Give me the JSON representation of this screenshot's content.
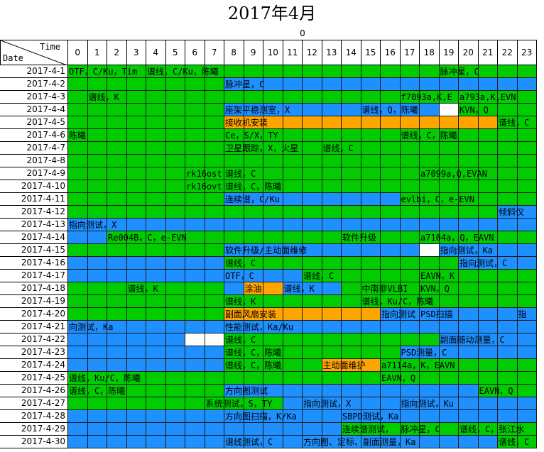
{
  "title": "2017年4月",
  "hour_group_label": "0",
  "corner": {
    "time": "Time",
    "date": "Date"
  },
  "hours": [
    "0",
    "1",
    "2",
    "3",
    "4",
    "5",
    "6",
    "7",
    "8",
    "9",
    "10",
    "11",
    "12",
    "13",
    "14",
    "15",
    "16",
    "17",
    "18",
    "19",
    "20",
    "21",
    "22",
    "23"
  ],
  "colors": {
    "G": "#00cc00",
    "B": "#1e90ff",
    "O": "#ffa500",
    "W": "#ffffff"
  },
  "rows": [
    {
      "date": "2017-4-1",
      "cells": "GGGGGGGGGGGGGGGGGGGGGGGG",
      "labels": [
        {
          "h": 0,
          "text": "OTF，C/Ku，Tim"
        },
        {
          "h": 4,
          "text": "谱线，C/Ku，陈曦"
        },
        {
          "h": 19,
          "text": "脉冲星，C"
        }
      ]
    },
    {
      "date": "2017-4-2",
      "cells": "GGGGGGGGBBBBBBBBBBBBBBBB",
      "labels": [
        {
          "h": 8,
          "text": "脉冲星，C"
        }
      ]
    },
    {
      "date": "2017-4-3",
      "cells": "GGGGGGGGGGGGGGGGGGGGGGGG",
      "labels": [
        {
          "h": 1,
          "text": "谱线，K"
        },
        {
          "h": 17,
          "text": "f7093a,K,E"
        },
        {
          "h": 20,
          "text": "a793a,K,EVN"
        }
      ]
    },
    {
      "date": "2017-4-4",
      "cells": "GGGGGGGGBBBBBBBBBBBWGGGG",
      "labels": [
        {
          "h": 8,
          "text": "座架平稳测室，X"
        },
        {
          "h": 15,
          "text": "谱线，Q，陈曦"
        },
        {
          "h": 20,
          "text": "KVN，Q"
        }
      ]
    },
    {
      "date": "2017-4-5",
      "cells": "GGGGGGGGOOOOOOOOOOOOOOGG",
      "labels": [
        {
          "h": 8,
          "text": "接收机安装"
        },
        {
          "h": 22,
          "text": "谱线，C"
        }
      ]
    },
    {
      "date": "2017-4-6",
      "cells": "GGGGGGGGGGGGGGGGGGGGGGGG",
      "labels": [
        {
          "h": 0,
          "text": "陈曦"
        },
        {
          "h": 8,
          "text": "Ce，S/X，TY"
        },
        {
          "h": 17,
          "text": "谱线，C，陈曦"
        }
      ]
    },
    {
      "date": "2017-4-7",
      "cells": "GGGGGGGGGGGGGGGGGGGGGGGG",
      "labels": [
        {
          "h": 8,
          "text": "卫星跟踪，X，火星"
        },
        {
          "h": 13,
          "text": "谱线，C"
        }
      ]
    },
    {
      "date": "2017-4-8",
      "cells": "GGGGGGGGGGGGGGGGGGGGGGGG",
      "labels": []
    },
    {
      "date": "2017-4-9",
      "cells": "GGGGGGGGGGGGGGGGGGGGGGGG",
      "labels": [
        {
          "h": 6,
          "text": "rk16ost"
        },
        {
          "h": 8,
          "text": "谱线，C"
        },
        {
          "h": 18,
          "text": "a7099a,Q,EVAN"
        }
      ]
    },
    {
      "date": "2017-4-10",
      "cells": "GGGGGGGGGGGGGGGGGGGGGGGG",
      "labels": [
        {
          "h": 6,
          "text": "rk16ovt"
        },
        {
          "h": 8,
          "text": "谱线，C，陈曦"
        }
      ]
    },
    {
      "date": "2017-4-11",
      "cells": "GGGGGGGGBBBBBBBBBGGGGGGG",
      "labels": [
        {
          "h": 8,
          "text": "连续谱，C/Ku"
        },
        {
          "h": 17,
          "text": "evlbi，C，e-EVN"
        }
      ]
    },
    {
      "date": "2017-4-12",
      "cells": "GGGGGGGGGGGGGGGGGGGGGGBB",
      "labels": [
        {
          "h": 22,
          "text": "倾斜仪"
        }
      ]
    },
    {
      "date": "2017-4-13",
      "cells": "BBBBBBBBBBBBBBBBBBBBBBBB",
      "labels": [
        {
          "h": 0,
          "text": "指向测试，X"
        }
      ]
    },
    {
      "date": "2017-4-14",
      "cells": "BBGGGGGGGGGGGGGGGGGGGGGG",
      "labels": [
        {
          "h": 2,
          "text": "Re004B，C，e-EVN"
        },
        {
          "h": 14,
          "text": "软件升级"
        },
        {
          "h": 18,
          "text": "a7104a，Q，EAVN"
        }
      ]
    },
    {
      "date": "2017-4-15",
      "cells": "GGGGGGGGBBBBBBBBBBWBBBBB",
      "labels": [
        {
          "h": 8,
          "text": "软件升级/主动面维修"
        },
        {
          "h": 19,
          "text": "指向测试，Ka"
        }
      ]
    },
    {
      "date": "2017-4-16",
      "cells": "BBBBBBBBGGGGGGGGGGGGBBBB",
      "labels": [
        {
          "h": 8,
          "text": "谱线，C"
        },
        {
          "h": 20,
          "text": "指向测试，C"
        }
      ]
    },
    {
      "date": "2017-4-17",
      "cells": "BBBBBBBBBBBBGGGGGGGGGGGG",
      "labels": [
        {
          "h": 8,
          "text": "OTF，C"
        },
        {
          "h": 12,
          "text": "谱线，C"
        },
        {
          "h": 18,
          "text": "EAVN，K"
        }
      ]
    },
    {
      "date": "2017-4-18",
      "cells": "GGGGGGGGBOOBBBGGGGGGGGGG",
      "labels": [
        {
          "h": 3,
          "text": "谱线，K"
        },
        {
          "h": 9,
          "text": "涂油"
        },
        {
          "h": 11,
          "text": "谱线，K"
        },
        {
          "h": 15,
          "text": "中南非VLBI"
        },
        {
          "h": 18,
          "text": "KVN，Q"
        }
      ]
    },
    {
      "date": "2017-4-19",
      "cells": "GGGGGGGGGGGGGGGGGGGGGGGG",
      "labels": [
        {
          "h": 8,
          "text": "谱线，K"
        },
        {
          "h": 15,
          "text": "谱线，Ku/C，陈曦"
        }
      ]
    },
    {
      "date": "2017-4-20",
      "cells": "GGGGGGGGOOOOOOOOBBBBBBBB",
      "labels": [
        {
          "h": 8,
          "text": "副面风扇安装"
        },
        {
          "h": 16,
          "text": "指向测试"
        },
        {
          "h": 18,
          "text": "PSD扫描"
        },
        {
          "h": 23,
          "text": "指"
        }
      ]
    },
    {
      "date": "2017-4-21",
      "cells": "BBBBBBBBBBBBBBBBBBBBBBBB",
      "labels": [
        {
          "h": 0,
          "text": "向测试，Ka"
        },
        {
          "h": 8,
          "text": "性能测试，Ka/Ku"
        }
      ]
    },
    {
      "date": "2017-4-22",
      "cells": "BBBBBBWWGGGGGGGGGGGBBBBB",
      "labels": [
        {
          "h": 8,
          "text": "谱线，C"
        },
        {
          "h": 19,
          "text": "副面随动测量，C"
        }
      ]
    },
    {
      "date": "2017-4-23",
      "cells": "BBBBBBBBGGGGGGGGGBBBBBBB",
      "labels": [
        {
          "h": 8,
          "text": "谱线，C，陈曦"
        },
        {
          "h": 17,
          "text": "PSD测量，C"
        }
      ]
    },
    {
      "date": "2017-4-24",
      "cells": "BBBBBBBBGGGGGOOOGGGGGGGG",
      "labels": [
        {
          "h": 8,
          "text": "谱线，C，陈曦"
        },
        {
          "h": 13,
          "text": "主动面维护"
        },
        {
          "h": 16,
          "text": "a7114a，K，EAVN"
        }
      ]
    },
    {
      "date": "2017-4-25",
      "cells": "GGGGGGGGGGGGGGGGGGGGGGGG",
      "labels": [
        {
          "h": 0,
          "text": "谱线，Ku/C，陈曦"
        },
        {
          "h": 16,
          "text": "EAVN，Q"
        }
      ]
    },
    {
      "date": "2017-4-26",
      "cells": "GGGGGGGGBBBBBBBBBBBBBGGG",
      "labels": [
        {
          "h": 0,
          "text": "谱线，C，陈曦"
        },
        {
          "h": 8,
          "text": "方向图测试"
        },
        {
          "h": 21,
          "text": "EAVN，Q"
        }
      ]
    },
    {
      "date": "2017-4-27",
      "cells": "GGGGGGGGGGGBBBBBBBBBBBBB",
      "labels": [
        {
          "h": 7,
          "text": "系统测试，S，TY"
        },
        {
          "h": 12,
          "text": "指向测试，X"
        },
        {
          "h": 17,
          "text": "指向测试，Ku"
        }
      ]
    },
    {
      "date": "2017-4-28",
      "cells": "BBBBBBBBBBBBBBBBBBBBBBBB",
      "labels": [
        {
          "h": 8,
          "text": "方向图扫描，K/Ka"
        },
        {
          "h": 14,
          "text": "SBPD测试，Ka"
        }
      ]
    },
    {
      "date": "2017-4-29",
      "cells": "BBBBBBBBBBBBBBGGGGGGGGGG",
      "labels": [
        {
          "h": 14,
          "text": "连续谱测试，"
        },
        {
          "h": 17,
          "text": "脉冲星，C"
        },
        {
          "h": 20,
          "text": "谱线，C，张江水"
        }
      ]
    },
    {
      "date": "2017-4-30",
      "cells": "BBBBBBBBBBBBBBBBBBBBBBGG",
      "labels": [
        {
          "h": 8,
          "text": "谱线测试，C"
        },
        {
          "h": 12,
          "text": "方向图、定标、副面测量，Ka"
        },
        {
          "h": 22,
          "text": "谱线，C"
        }
      ]
    }
  ]
}
